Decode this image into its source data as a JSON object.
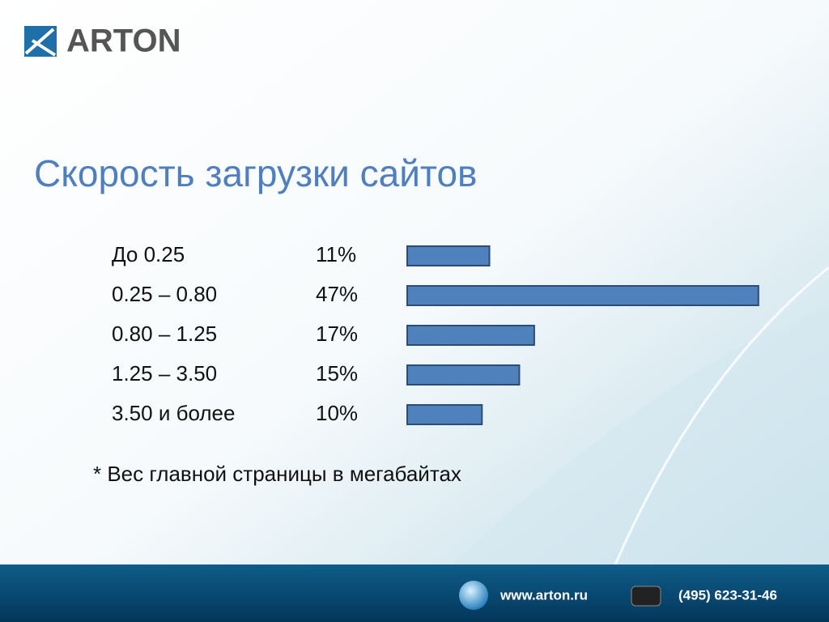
{
  "header": {
    "logo": "ARTON"
  },
  "chart_data": {
    "type": "bar",
    "orientation": "horizontal",
    "title": "Скорость загрузки сайтов",
    "categories": [
      "До 0.25",
      "0.25 – 0.80",
      "0.80 – 1.25",
      "1.25 – 3.50",
      "3.50 и более"
    ],
    "values": [
      11,
      47,
      17,
      15,
      10
    ],
    "value_labels": [
      "11%",
      "47%",
      "17%",
      "15%",
      "10%"
    ],
    "color": "#4f81bd",
    "note": "* Вес главной страницы в мегабайтах"
  },
  "footer": {
    "website": "www.arton.ru",
    "phone": "(495) 623-31-46"
  }
}
